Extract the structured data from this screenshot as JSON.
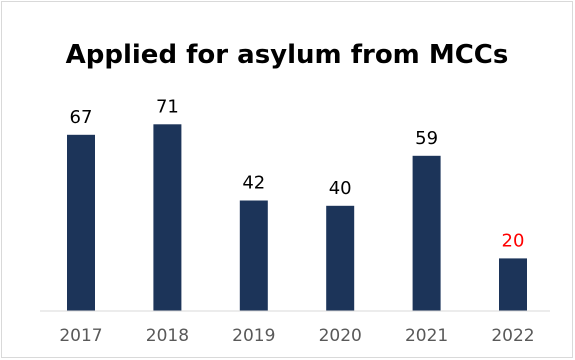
{
  "chart_data": {
    "type": "bar",
    "title": "Applied for asylum from MCCs",
    "categories": [
      "2017",
      "2018",
      "2019",
      "2020",
      "2021",
      "2022"
    ],
    "values": [
      67,
      71,
      42,
      40,
      59,
      20
    ],
    "xlabel": "",
    "ylabel": "",
    "ylim": [
      0,
      80
    ],
    "grid": false,
    "legend": "none",
    "colors": {
      "bar": "#1c3459",
      "label": "#000000",
      "highlight_label": "#ff0000",
      "axis": "#d9d9d9",
      "tick": "#595959"
    },
    "highlight_index": 5
  }
}
